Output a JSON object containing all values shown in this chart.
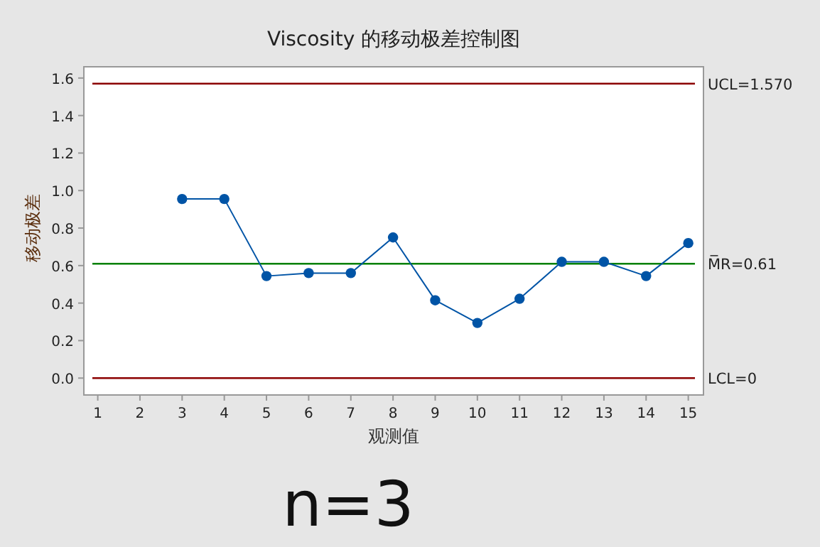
{
  "chart_data": {
    "type": "line",
    "title": "Viscosity 的移动极差控制图",
    "xlabel": "观测值",
    "ylabel": "移动极差",
    "series": [
      {
        "color": "#0054a6",
        "x": [
          3,
          4,
          5,
          6,
          7,
          8,
          9,
          10,
          11,
          12,
          13,
          14,
          15
        ],
        "values": [
          0.955,
          0.955,
          0.544,
          0.56,
          0.56,
          0.75,
          0.415,
          0.294,
          0.423,
          0.62,
          0.62,
          0.544,
          0.72
        ]
      }
    ],
    "xlim": [
      0.67,
      15.36
    ],
    "ylim": [
      -0.09,
      1.66
    ],
    "xticks": [
      1,
      2,
      3,
      4,
      5,
      6,
      7,
      8,
      9,
      10,
      11,
      12,
      13,
      14,
      15
    ],
    "yticks": [
      {
        "value": 0,
        "label": "0.0"
      },
      {
        "value": 0.2,
        "label": "0.2"
      },
      {
        "value": 0.4,
        "label": "0.4"
      },
      {
        "value": 0.6,
        "label": "0.6"
      },
      {
        "value": 0.8,
        "label": "0.8"
      },
      {
        "value": 1,
        "label": "1.0"
      },
      {
        "value": 1.2,
        "label": "1.2"
      },
      {
        "value": 1.4,
        "label": "1.4"
      },
      {
        "value": 1.6,
        "label": "1.6"
      }
    ],
    "ref_lines": [
      {
        "axis": "y",
        "value": 1.57,
        "label": "UCL=1.570",
        "color": "#8b0000"
      },
      {
        "axis": "y",
        "value": 0.61,
        "label": "M̅R=0.61",
        "color": "#008000"
      },
      {
        "axis": "y",
        "value": 0,
        "label": "LCL=0",
        "color": "#8b0000"
      }
    ],
    "marker": "circle",
    "line_style": "solid",
    "grid": false,
    "annotations": [
      "n=3"
    ]
  }
}
